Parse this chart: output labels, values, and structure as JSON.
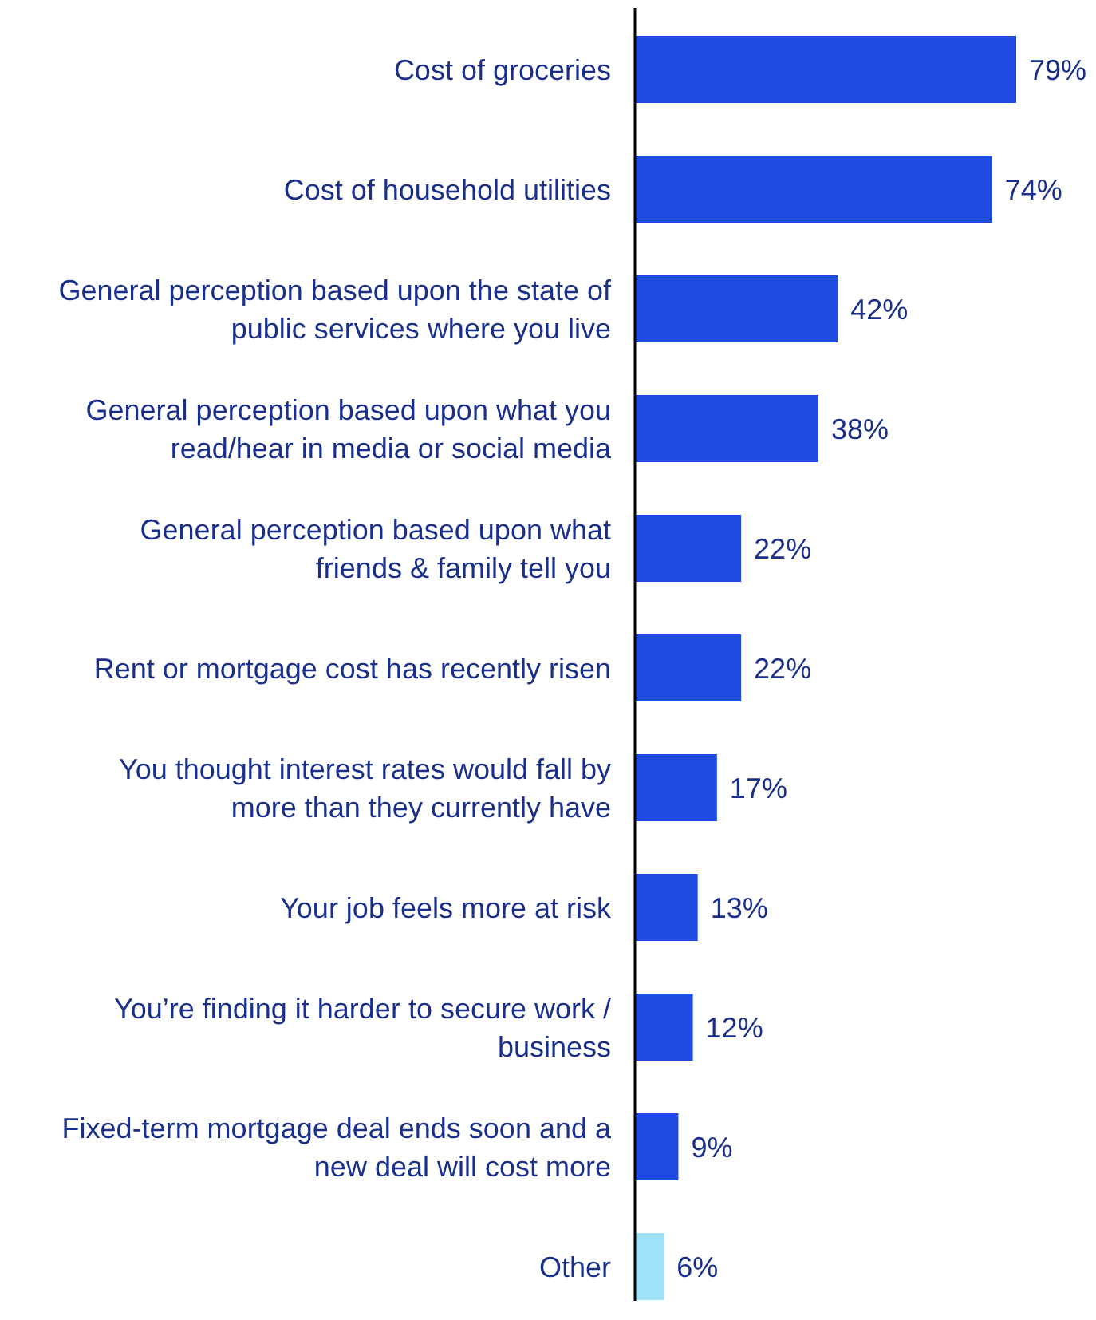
{
  "chart_data": {
    "type": "bar",
    "orientation": "horizontal",
    "categories": [
      "Cost of groceries",
      "Cost of household utilities",
      "General perception based upon the state of public services where you live",
      "General perception based upon what you read/hear in media or social media",
      "General perception based upon what friends & family tell you",
      "Rent or mortgage cost has recently risen",
      "You thought interest rates would fall by more than they currently have",
      "Your job feels more at risk",
      "You’re finding it harder to secure work / business",
      "Fixed-term mortgage deal ends soon and a new deal will cost more",
      "Other"
    ],
    "values": [
      79,
      74,
      42,
      38,
      22,
      22,
      17,
      13,
      12,
      9,
      6
    ],
    "value_labels": [
      "79%",
      "74%",
      "42%",
      "38%",
      "22%",
      "22%",
      "17%",
      "13%",
      "12%",
      "9%",
      "6%"
    ],
    "colors": [
      "#1f4be3",
      "#1f4be3",
      "#1f4be3",
      "#1f4be3",
      "#1f4be3",
      "#1f4be3",
      "#1f4be3",
      "#1f4be3",
      "#1f4be3",
      "#1f4be3",
      "#9fe2f7"
    ]
  }
}
